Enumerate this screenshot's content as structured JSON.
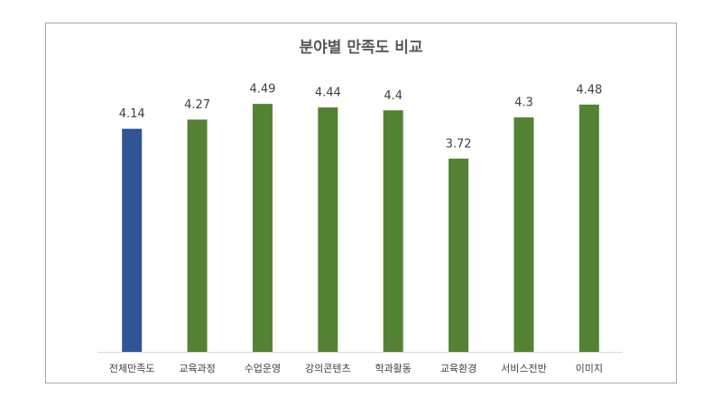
{
  "chart_data": {
    "type": "bar",
    "title": "분야별 만족도 비교",
    "categories": [
      "전체만족도",
      "교육과정",
      "수업운영",
      "강의콘텐츠",
      "학과활동",
      "교육환경",
      "서비스전반",
      "이미지"
    ],
    "values": [
      4.14,
      4.27,
      4.49,
      4.44,
      4.4,
      3.72,
      4.3,
      4.48
    ],
    "colors": [
      "#2f5597",
      "#548235",
      "#548235",
      "#548235",
      "#548235",
      "#548235",
      "#548235",
      "#548235"
    ],
    "ylim": [
      1,
      5
    ]
  }
}
